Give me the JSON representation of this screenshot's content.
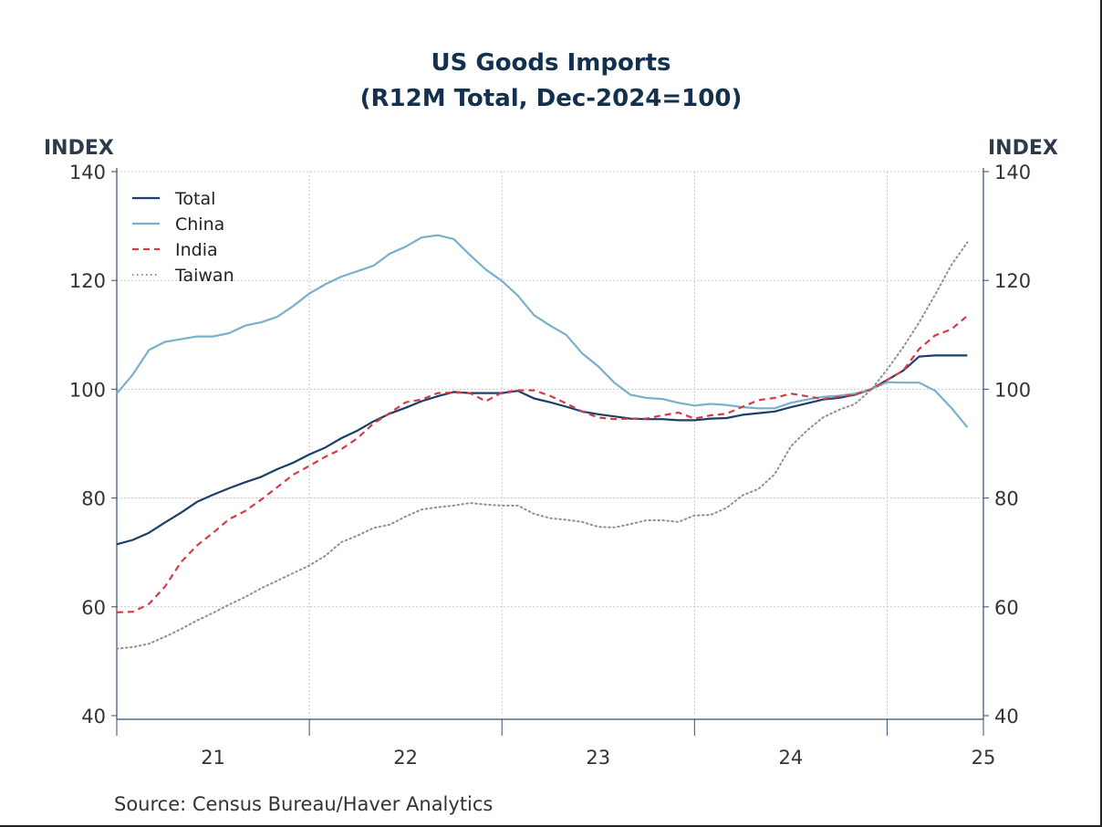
{
  "chart_data": {
    "type": "line",
    "title": "US Goods Imports",
    "subtitle": "(R12M Total, Dec-2024=100)",
    "ylabel_left": "INDEX",
    "ylabel_right": "INDEX",
    "ylim": [
      40,
      140
    ],
    "yticks": [
      40,
      60,
      80,
      100,
      120,
      140
    ],
    "xlim": [
      2020.5,
      2025.0
    ],
    "xtick_labels": [
      {
        "value": 2021.0,
        "label": "21"
      },
      {
        "value": 2022.0,
        "label": "22"
      },
      {
        "value": 2023.0,
        "label": "23"
      },
      {
        "value": 2024.0,
        "label": "24"
      },
      {
        "value": 2025.0,
        "label": "25"
      }
    ],
    "year_boundaries": [
      2021.5,
      2022.5,
      2023.5,
      2024.5
    ],
    "x": [
      2020.5,
      2020.5833,
      2020.6667,
      2020.75,
      2020.8333,
      2020.9167,
      2021.0,
      2021.0833,
      2021.1667,
      2021.25,
      2021.3333,
      2021.4167,
      2021.5,
      2021.5833,
      2021.6667,
      2021.75,
      2021.8333,
      2021.9167,
      2022.0,
      2022.0833,
      2022.1667,
      2022.25,
      2022.3333,
      2022.4167,
      2022.5,
      2022.5833,
      2022.6667,
      2022.75,
      2022.8333,
      2022.9167,
      2023.0,
      2023.0833,
      2023.1667,
      2023.25,
      2023.3333,
      2023.4167,
      2023.5,
      2023.5833,
      2023.6667,
      2023.75,
      2023.8333,
      2023.9167,
      2024.0,
      2024.0833,
      2024.1667,
      2024.25,
      2024.3333,
      2024.4167,
      2024.5,
      2024.5833,
      2024.6667,
      2024.75,
      2024.8333,
      2024.9167
    ],
    "series": [
      {
        "name": "Total",
        "color": "#1b3f66",
        "dash": "solid",
        "values": [
          71.5,
          72.3,
          73.6,
          75.5,
          77.3,
          79.3,
          80.6,
          81.8,
          82.9,
          83.9,
          85.3,
          86.5,
          88.0,
          89.3,
          91.0,
          92.4,
          94.1,
          95.5,
          96.6,
          97.8,
          98.7,
          99.5,
          99.3,
          99.3,
          99.3,
          99.7,
          98.3,
          97.6,
          96.8,
          95.9,
          95.4,
          95.0,
          94.6,
          94.5,
          94.5,
          94.3,
          94.3,
          94.6,
          94.7,
          95.3,
          95.6,
          95.9,
          96.7,
          97.4,
          98.1,
          98.4,
          99.0,
          100.0,
          101.7,
          103.4,
          106.0,
          106.2,
          106.2,
          106.2
        ]
      },
      {
        "name": "China",
        "color": "#78b0cc",
        "dash": "solid",
        "values": [
          99.2,
          102.7,
          107.2,
          108.7,
          109.2,
          109.7,
          109.7,
          110.3,
          111.7,
          112.3,
          113.3,
          115.3,
          117.6,
          119.3,
          120.7,
          121.7,
          122.7,
          124.9,
          126.2,
          127.9,
          128.3,
          127.6,
          124.7,
          122.0,
          119.9,
          117.2,
          113.6,
          111.7,
          110.0,
          106.6,
          104.2,
          101.2,
          99.0,
          98.4,
          98.2,
          97.5,
          97.0,
          97.3,
          97.1,
          96.7,
          96.5,
          96.5,
          97.5,
          98.1,
          98.6,
          98.8,
          99.2,
          100.0,
          101.3,
          101.2,
          101.2,
          99.7,
          96.6,
          93.0
        ]
      },
      {
        "name": "India",
        "color": "#d53b46",
        "dash": "dashed",
        "values": [
          59.0,
          59.1,
          60.5,
          63.7,
          68.2,
          71.3,
          73.6,
          76.1,
          77.6,
          79.7,
          82.0,
          84.3,
          85.9,
          87.6,
          89.0,
          91.0,
          93.7,
          95.6,
          97.6,
          98.1,
          99.3,
          99.4,
          99.3,
          97.8,
          99.4,
          99.8,
          99.8,
          98.8,
          97.4,
          95.9,
          94.8,
          94.5,
          94.6,
          94.6,
          95.2,
          95.7,
          94.6,
          95.2,
          95.5,
          96.8,
          98.0,
          98.4,
          99.2,
          98.7,
          98.2,
          98.6,
          99.0,
          100.0,
          101.7,
          103.4,
          107.4,
          109.9,
          111.0,
          113.5
        ]
      },
      {
        "name": "Taiwan",
        "color": "#8f8f8f",
        "dash": "dotted",
        "values": [
          52.3,
          52.6,
          53.2,
          54.5,
          55.9,
          57.5,
          58.9,
          60.4,
          61.8,
          63.4,
          64.8,
          66.2,
          67.6,
          69.4,
          71.9,
          73.1,
          74.5,
          75.1,
          76.6,
          77.9,
          78.3,
          78.6,
          79.1,
          78.8,
          78.6,
          78.6,
          77.1,
          76.3,
          76.0,
          75.6,
          74.7,
          74.6,
          75.2,
          75.9,
          75.9,
          75.6,
          76.8,
          76.9,
          78.2,
          80.5,
          81.7,
          84.4,
          89.5,
          92.4,
          94.8,
          96.2,
          97.3,
          99.9,
          103.6,
          107.7,
          112.3,
          117.4,
          122.8,
          127.0
        ]
      }
    ],
    "legend": {
      "position": "top-left",
      "entries": [
        "Total",
        "China",
        "India",
        "Taiwan"
      ]
    },
    "grid": true,
    "source": "Source:  Census Bureau/Haver Analytics"
  },
  "colors": {
    "axis": "#36506e",
    "grid": "#c8c8c8",
    "title": "#13304f"
  }
}
